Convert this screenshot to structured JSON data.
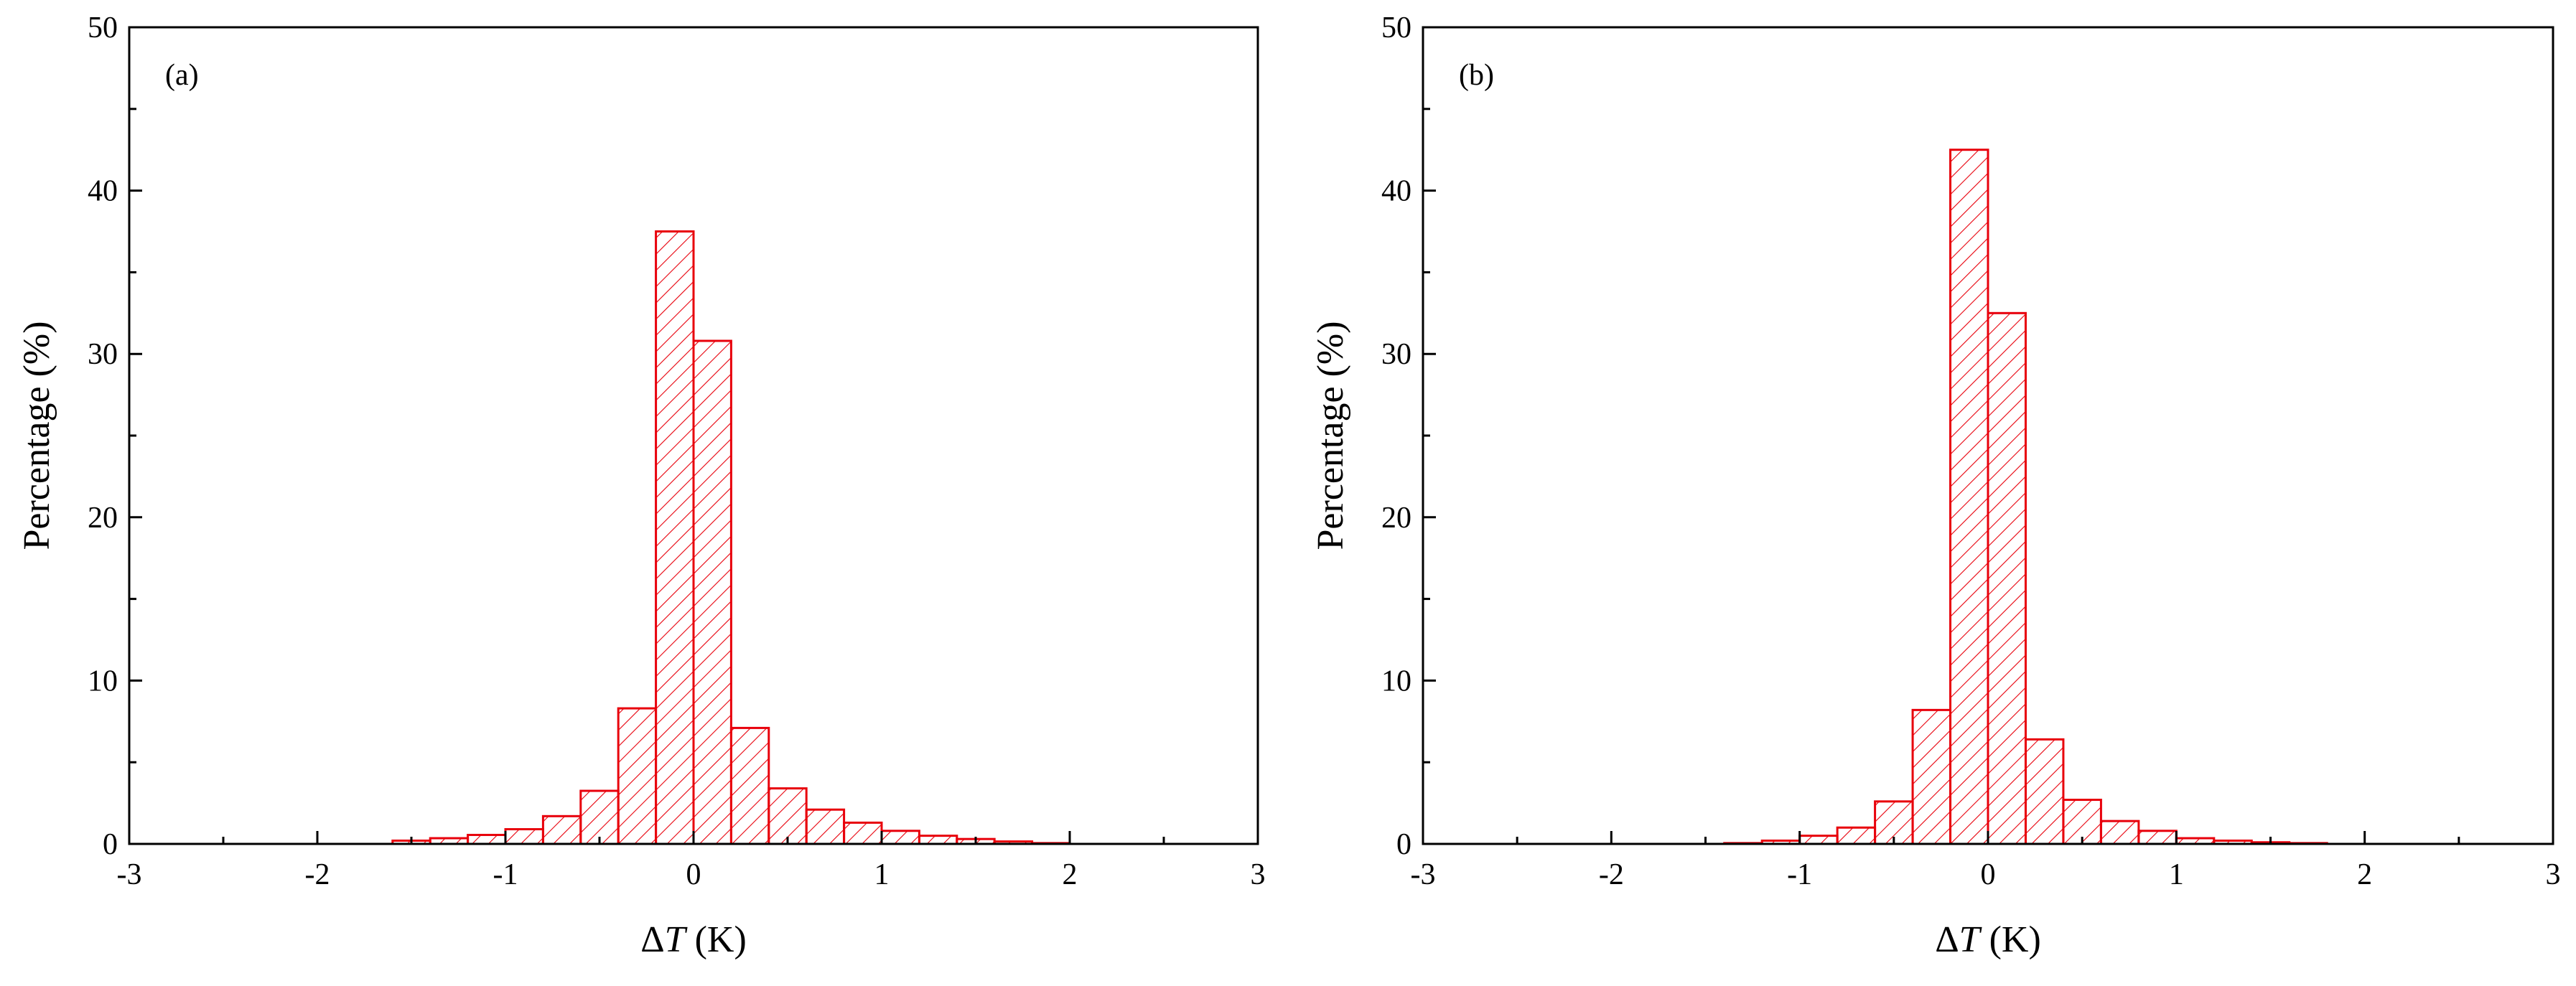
{
  "colors": {
    "bar_stroke": "#e8000b",
    "bar_hatch": "#e8000b",
    "axis": "#000000",
    "background": "#ffffff"
  },
  "chart_data": [
    {
      "type": "bar",
      "panel_label": "(a)",
      "xlabel_symbol": "ΔT",
      "xlabel_unit": "(K)",
      "ylabel": "Percentage (%)",
      "xlim": [
        -3,
        3
      ],
      "ylim": [
        0,
        50
      ],
      "x_ticks": [
        "-3",
        "-2",
        "-1",
        "0",
        "1",
        "2",
        "3"
      ],
      "y_ticks": [
        "0",
        "10",
        "20",
        "30",
        "40",
        "50"
      ],
      "hatch": "diagonal",
      "bin_width": 0.2,
      "bin_centers": [
        -1.5,
        -1.3,
        -1.1,
        -0.9,
        -0.7,
        -0.5,
        -0.3,
        -0.1,
        0.1,
        0.3,
        0.5,
        0.7,
        0.9,
        1.1,
        1.3,
        1.5,
        1.7,
        1.9
      ],
      "values": [
        0.2,
        0.35,
        0.55,
        0.9,
        1.7,
        3.25,
        8.3,
        37.5,
        30.8,
        7.1,
        3.4,
        2.1,
        1.3,
        0.8,
        0.5,
        0.3,
        0.15,
        0.05
      ]
    },
    {
      "type": "bar",
      "panel_label": "(b)",
      "xlabel_symbol": "ΔT",
      "xlabel_unit": "(K)",
      "ylabel": "Percentage (%)",
      "xlim": [
        -3,
        3
      ],
      "ylim": [
        0,
        50
      ],
      "x_ticks": [
        "-3",
        "-2",
        "-1",
        "0",
        "1",
        "2",
        "3"
      ],
      "y_ticks": [
        "0",
        "10",
        "20",
        "30",
        "40",
        "50"
      ],
      "hatch": "diagonal",
      "bin_width": 0.2,
      "bin_centers": [
        -1.3,
        -1.1,
        -0.9,
        -0.7,
        -0.5,
        -0.3,
        -0.1,
        0.1,
        0.3,
        0.5,
        0.7,
        0.9,
        1.1,
        1.3,
        1.5,
        1.7
      ],
      "values": [
        0.05,
        0.2,
        0.5,
        1.0,
        2.6,
        8.2,
        42.5,
        32.5,
        6.4,
        2.7,
        1.4,
        0.8,
        0.35,
        0.2,
        0.1,
        0.05
      ]
    }
  ]
}
